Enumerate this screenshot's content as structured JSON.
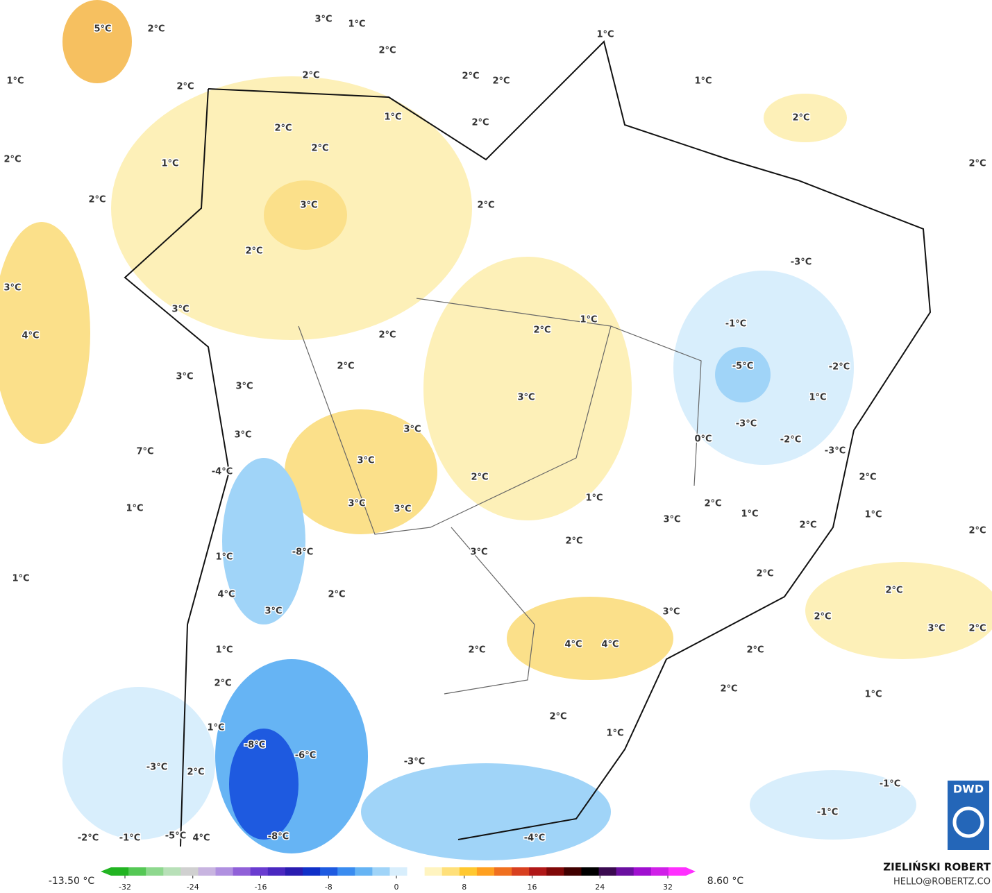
{
  "map": {
    "labels": [
      "5°C",
      "2°C",
      "3°C",
      "1°C",
      "1°C",
      "2°C",
      "1°C",
      "2°C",
      "2°C",
      "2°C",
      "2°C",
      "1°C",
      "2°C",
      "1°C",
      "2°C",
      "2°C",
      "2°C",
      "2°C",
      "1°C",
      "2°C",
      "2°C",
      "3°C",
      "2°C",
      "2°C",
      "-3°C",
      "3°C",
      "3°C",
      "1°C",
      "-1°C",
      "2°C",
      "4°C",
      "2°C",
      "2°C",
      "-5°C",
      "-2°C",
      "3°C",
      "3°C",
      "3°C",
      "1°C",
      "-3°C",
      "3°C",
      "3°C",
      "0°C",
      "-2°C",
      "-3°C",
      "7°C",
      "3°C",
      "-4°C",
      "2°C",
      "2°C",
      "1°C",
      "3°C",
      "3°C",
      "2°C",
      "1°C",
      "1°C",
      "3°C",
      "1°C",
      "2°C",
      "2°C",
      "2°C",
      "3°C",
      "-8°C",
      "1°C",
      "1°C",
      "2°C",
      "2°C",
      "4°C",
      "2°C",
      "3°C",
      "3°C",
      "2°C",
      "3°C",
      "2°C",
      "4°C",
      "4°C",
      "1°C",
      "2°C",
      "2°C",
      "2°C",
      "2°C",
      "1°C",
      "2°C",
      "1°C",
      "1°C",
      "-8°C",
      "-6°C",
      "-3°C",
      "-3°C",
      "2°C",
      "-1°C",
      "-1°C",
      "-2°C",
      "-1°C",
      "-5°C",
      "4°C",
      "-8°C",
      "-4°C"
    ],
    "logo": "DWD"
  },
  "colorbar": {
    "min_label": "-13.50 °C",
    "max_label": "8.60 °C",
    "ticks": [
      -32,
      -24,
      -16,
      -8,
      0,
      8,
      16,
      24,
      32
    ],
    "colors": [
      "#22b422",
      "#55c855",
      "#8ed88e",
      "#b8e0b8",
      "#d0d0d0",
      "#c8b4e0",
      "#b090e0",
      "#9060d8",
      "#6a3cd0",
      "#4a28c0",
      "#2a1cb0",
      "#1030c8",
      "#1e5ae0",
      "#3a8cf0",
      "#66b4f4",
      "#a0d4f8",
      "#d8eefc",
      "#ffffff",
      "#fff4c0",
      "#ffe07a",
      "#ffc830",
      "#ffa020",
      "#f07020",
      "#d84020",
      "#b01818",
      "#800808",
      "#400000",
      "#000000",
      "#3a0a50",
      "#6a10a0",
      "#a010d0",
      "#d020e8",
      "#ff30ff"
    ]
  },
  "credits": {
    "name": "ZIELIŃSKI ROBERT",
    "email": "HELLO@ROBERTZ.CO"
  }
}
